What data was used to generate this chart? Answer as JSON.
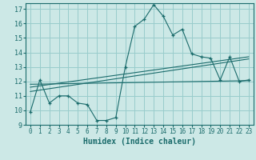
{
  "xlabel": "Humidex (Indice chaleur)",
  "background_color": "#cce8e6",
  "grid_color": "#99cccc",
  "line_color": "#1a6b6b",
  "xlim": [
    -0.5,
    23.5
  ],
  "ylim": [
    9,
    17.4
  ],
  "yticks": [
    9,
    10,
    11,
    12,
    13,
    14,
    15,
    16,
    17
  ],
  "xticks": [
    0,
    1,
    2,
    3,
    4,
    5,
    6,
    7,
    8,
    9,
    10,
    11,
    12,
    13,
    14,
    15,
    16,
    17,
    18,
    19,
    20,
    21,
    22,
    23
  ],
  "main_x": [
    0,
    1,
    2,
    3,
    4,
    5,
    6,
    7,
    8,
    9,
    10,
    11,
    12,
    13,
    14,
    15,
    16,
    17,
    18,
    19,
    20,
    21,
    22,
    23
  ],
  "main_y": [
    9.9,
    12.1,
    10.5,
    11.0,
    11.0,
    10.5,
    10.4,
    9.3,
    9.3,
    9.5,
    13.0,
    15.8,
    16.3,
    17.3,
    16.5,
    15.2,
    15.6,
    13.9,
    13.7,
    13.6,
    12.1,
    13.7,
    12.0,
    12.1
  ],
  "line1_x": [
    0,
    23
  ],
  "line1_y": [
    11.8,
    12.05
  ],
  "line2_x": [
    0,
    23
  ],
  "line2_y": [
    11.6,
    13.7
  ],
  "line3_x": [
    0,
    23
  ],
  "line3_y": [
    11.3,
    13.55
  ]
}
